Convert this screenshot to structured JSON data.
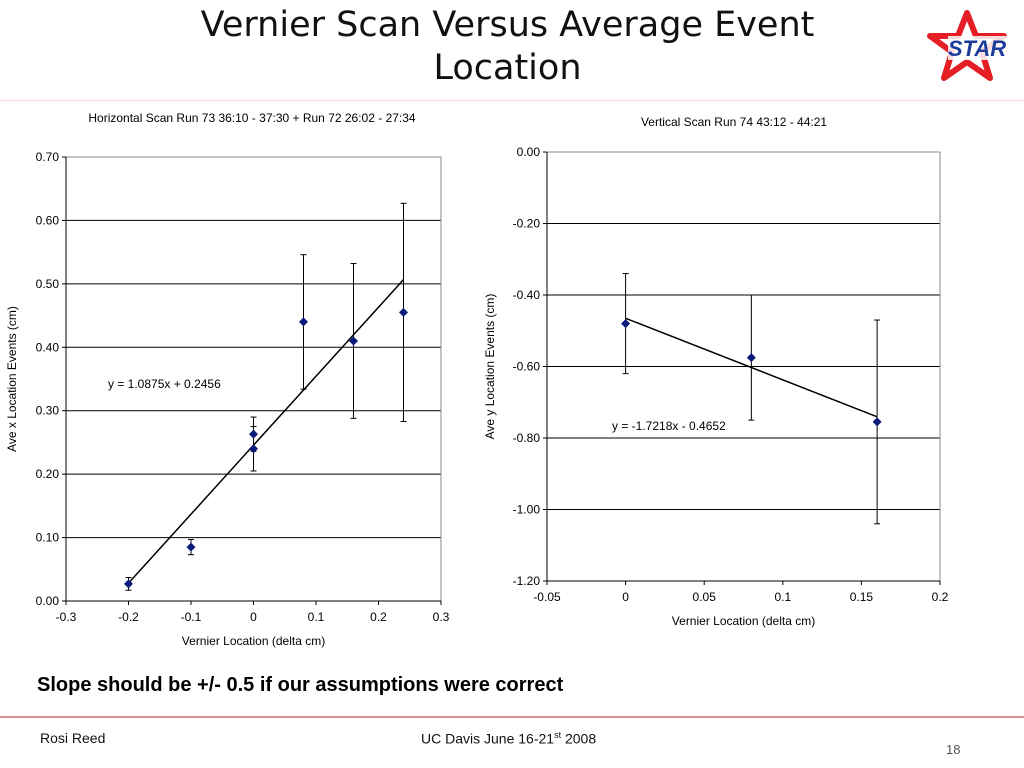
{
  "slide": {
    "title": "Vernier Scan Versus Average Event Location",
    "logo_text": "STAR",
    "note": "Slope should be +/- 0.5 if our assumptions were correct",
    "footer": {
      "author": "Rosi Reed",
      "event_prefix": "UC Davis June 16-21",
      "event_sup": "st",
      "event_suffix": " 2008",
      "page": "18"
    },
    "colors": {
      "marker": "#0a1a7a",
      "logo_red": "#e51d24",
      "logo_blue": "#1b3c9b",
      "footer_rule": "#e09090"
    }
  },
  "chart_data": [
    {
      "type": "scatter",
      "title": "Horizontal Scan Run 73 36:10 - 37:30 + Run 72 26:02 - 27:34",
      "xlabel": "Vernier Location (delta cm)",
      "ylabel": "Ave x Location Events (cm)",
      "xlim": [
        -0.3,
        0.3
      ],
      "ylim": [
        0.0,
        0.7
      ],
      "xticks": [
        "-0.3",
        "-0.2",
        "-0.1",
        "0",
        "0.1",
        "0.2",
        "0.3"
      ],
      "yticks": [
        "0.00",
        "0.10",
        "0.20",
        "0.30",
        "0.40",
        "0.50",
        "0.60",
        "0.70"
      ],
      "grid": "horizontal",
      "points": [
        {
          "x": -0.2,
          "y": 0.027,
          "err": 0.01
        },
        {
          "x": -0.1,
          "y": 0.085,
          "err": 0.012
        },
        {
          "x": 0.0,
          "y": 0.24,
          "err": 0.035
        },
        {
          "x": 0.0,
          "y": 0.263,
          "err": 0.027
        },
        {
          "x": 0.08,
          "y": 0.44,
          "err": 0.106
        },
        {
          "x": 0.16,
          "y": 0.41,
          "err": 0.122
        },
        {
          "x": 0.24,
          "y": 0.455,
          "err": 0.172
        }
      ],
      "trendline": {
        "slope": 1.0875,
        "intercept": 0.2456,
        "x_range": [
          -0.2,
          0.24
        ],
        "label": "y = 1.0875x + 0.2456"
      }
    },
    {
      "type": "scatter",
      "title": "Vertical Scan Run 74 43:12 - 44:21",
      "xlabel": "Vernier Location (delta cm)",
      "ylabel": "Ave y Location Events (cm)",
      "xlim": [
        -0.05,
        0.2
      ],
      "ylim": [
        -1.2,
        0.0
      ],
      "xticks": [
        "-0.05",
        "0",
        "0.05",
        "0.1",
        "0.15",
        "0.2"
      ],
      "yticks": [
        "-1.20",
        "-1.00",
        "-0.80",
        "-0.60",
        "-0.40",
        "-0.20",
        "0.00"
      ],
      "grid": "horizontal",
      "points": [
        {
          "x": 0.0,
          "y": -0.48,
          "err": 0.14
        },
        {
          "x": 0.08,
          "y": -0.575,
          "err": 0.175
        },
        {
          "x": 0.16,
          "y": -0.755,
          "err": 0.285
        }
      ],
      "trendline": {
        "slope": -1.7218,
        "intercept": -0.4652,
        "x_range": [
          0.0,
          0.16
        ],
        "label": "y = -1.7218x - 0.4652"
      }
    }
  ]
}
